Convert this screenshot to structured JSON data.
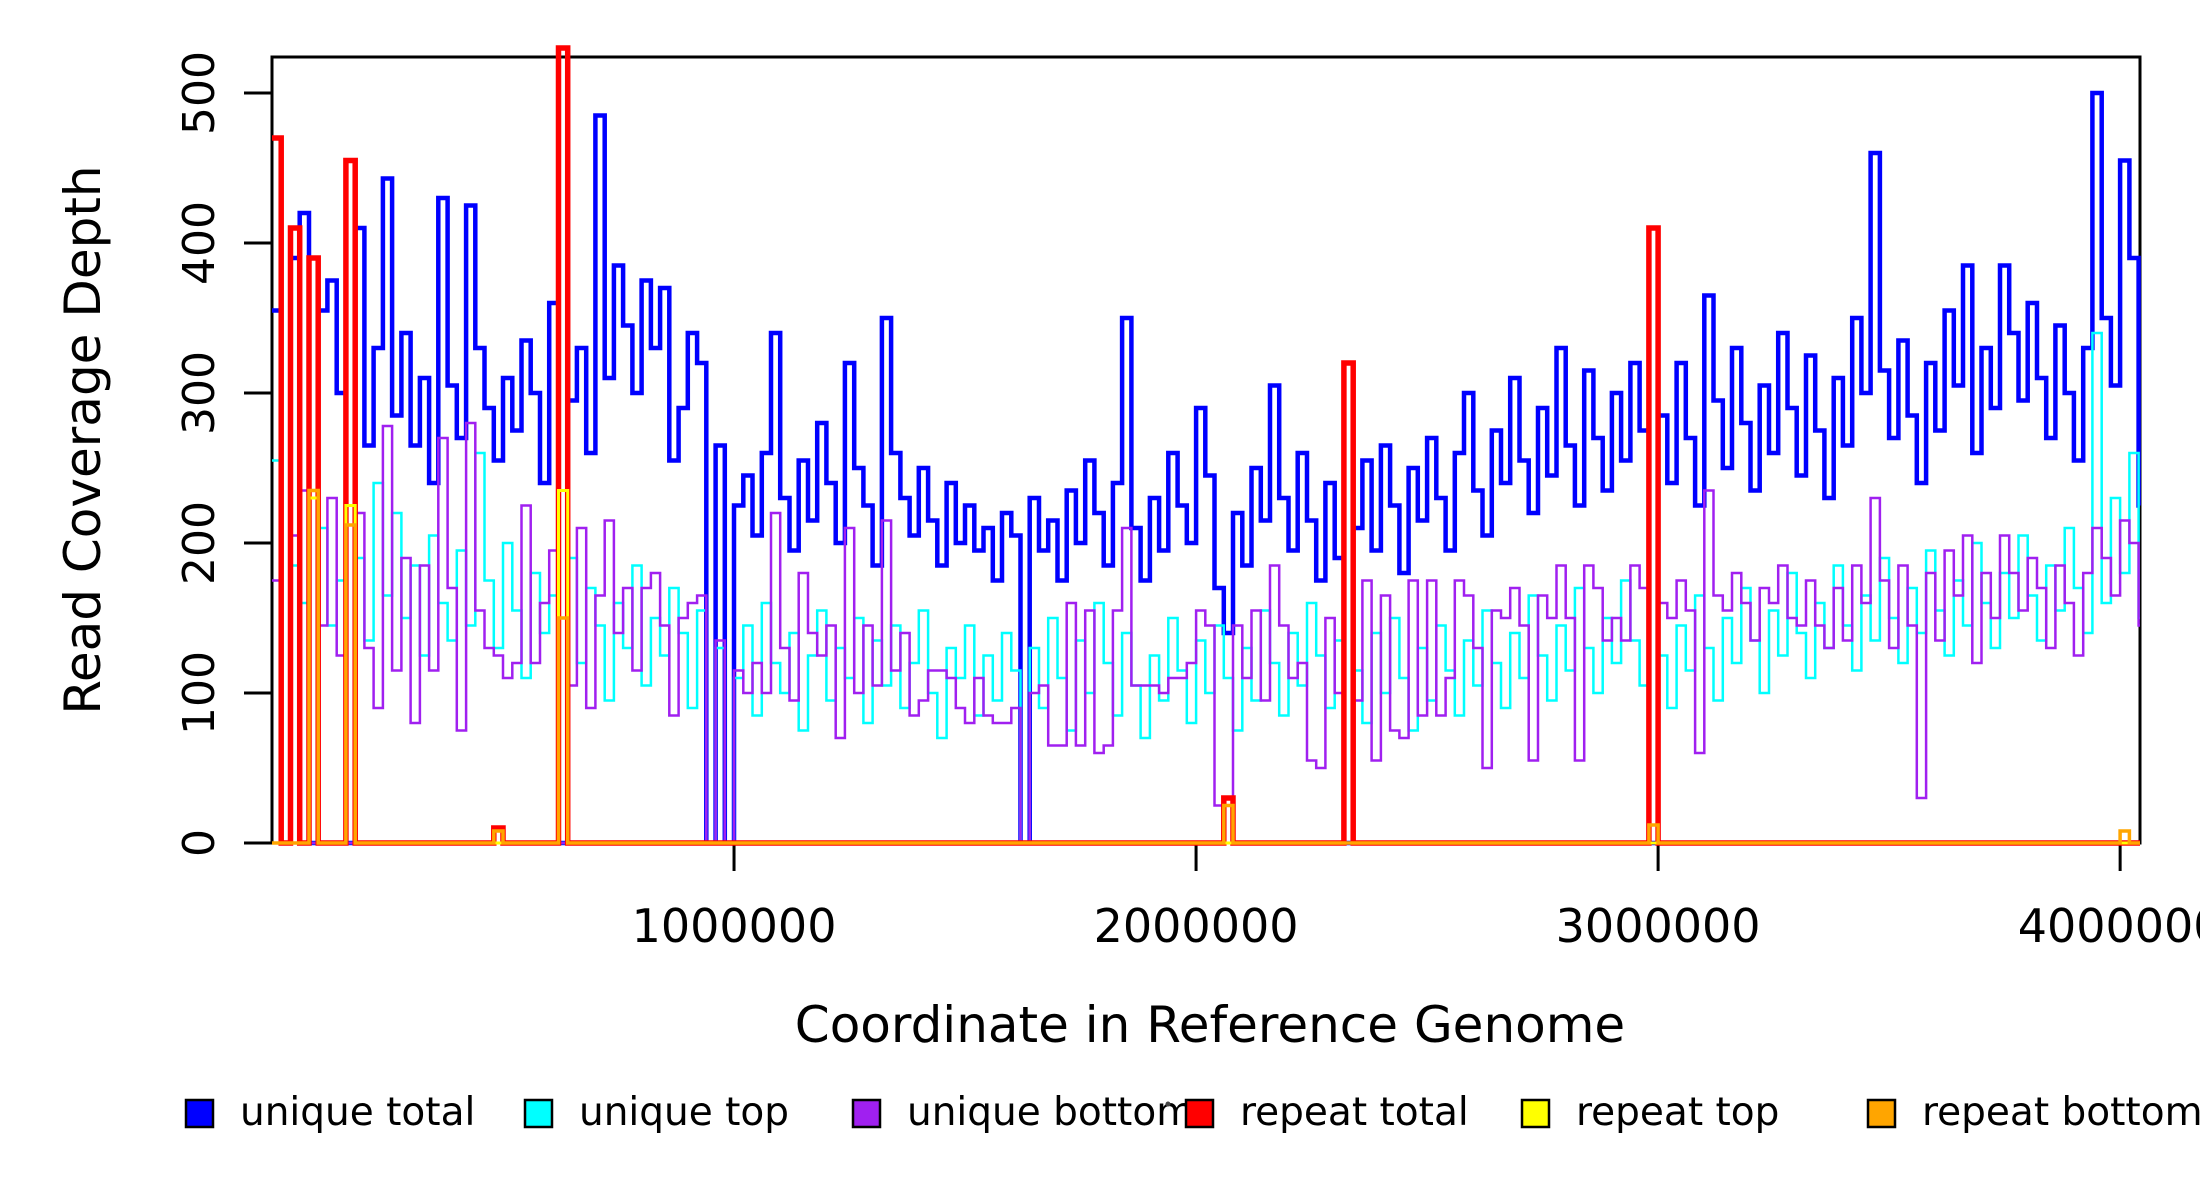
{
  "axes": {
    "y": {
      "label": "Read Coverage Depth",
      "ticks": [
        0,
        100,
        200,
        300,
        400,
        500
      ],
      "tick_labels": [
        "0",
        "100",
        "200",
        "300",
        "400",
        "500"
      ],
      "range": [
        0,
        524
      ]
    },
    "x": {
      "label": "Coordinate in Reference Genome",
      "ticks": [
        1000000,
        2000000,
        3000000,
        4000000
      ],
      "tick_labels": [
        "1000000",
        "2000000",
        "3000000",
        "4000000"
      ],
      "range": [
        0,
        4043000
      ]
    }
  },
  "legend": {
    "items": [
      {
        "label": "unique total",
        "color": "#0000FF"
      },
      {
        "label": "unique top",
        "color": "#00FFFF"
      },
      {
        "label": "unique bottom",
        "color": "#A020F0"
      },
      {
        "label": "repeat total",
        "color": "#FF0000"
      },
      {
        "label": "repeat top",
        "color": "#FFFF00"
      },
      {
        "label": "repeat bottom",
        "color": "#FFA500"
      }
    ]
  },
  "chart_data": {
    "type": "line",
    "step": true,
    "title": "",
    "xlabel": "Coordinate in Reference Genome",
    "ylabel": "Read Coverage Depth",
    "xlim": [
      0,
      4043000
    ],
    "ylim": [
      0,
      524
    ],
    "grid": false,
    "legend_position": "bottom",
    "x_start": 0,
    "x_step": 20000,
    "n_points": 203,
    "series": [
      {
        "name": "unique total",
        "color": "#0000FF",
        "stroke_width": 4.5,
        "values": [
          355,
          0,
          390,
          420,
          0,
          355,
          375,
          300,
          0,
          410,
          265,
          330,
          443,
          285,
          340,
          265,
          310,
          240,
          430,
          305,
          270,
          425,
          330,
          290,
          255,
          310,
          275,
          335,
          300,
          240,
          360,
          0,
          295,
          330,
          260,
          485,
          310,
          385,
          345,
          300,
          375,
          330,
          370,
          255,
          290,
          340,
          320,
          0,
          265,
          0,
          225,
          245,
          205,
          260,
          340,
          230,
          195,
          255,
          215,
          280,
          240,
          200,
          320,
          250,
          225,
          185,
          350,
          260,
          230,
          205,
          250,
          215,
          185,
          240,
          200,
          225,
          195,
          210,
          175,
          220,
          205,
          0,
          230,
          195,
          215,
          175,
          235,
          200,
          255,
          220,
          185,
          240,
          350,
          210,
          175,
          230,
          195,
          260,
          225,
          200,
          290,
          245,
          170,
          140,
          220,
          185,
          250,
          215,
          305,
          230,
          195,
          260,
          215,
          175,
          240,
          190,
          0,
          210,
          255,
          195,
          265,
          225,
          180,
          250,
          215,
          270,
          230,
          195,
          260,
          300,
          235,
          205,
          275,
          240,
          310,
          255,
          220,
          290,
          245,
          330,
          265,
          225,
          315,
          270,
          235,
          300,
          255,
          320,
          275,
          0,
          285,
          240,
          320,
          270,
          225,
          365,
          295,
          250,
          330,
          280,
          235,
          305,
          260,
          340,
          290,
          245,
          325,
          275,
          230,
          310,
          265,
          350,
          300,
          460,
          315,
          270,
          335,
          285,
          240,
          320,
          275,
          355,
          305,
          385,
          260,
          330,
          290,
          385,
          340,
          295,
          360,
          310,
          270,
          345,
          300,
          255,
          330,
          500,
          350,
          305,
          455,
          390,
          225
        ]
      },
      {
        "name": "unique top",
        "color": "#00FFFF",
        "stroke_width": 2.5,
        "values": [
          255,
          0,
          185,
          160,
          0,
          210,
          145,
          175,
          0,
          190,
          135,
          240,
          165,
          220,
          150,
          185,
          125,
          205,
          160,
          135,
          195,
          145,
          260,
          175,
          130,
          200,
          155,
          110,
          180,
          140,
          165,
          0,
          190,
          120,
          170,
          145,
          95,
          160,
          130,
          185,
          105,
          150,
          125,
          170,
          140,
          90,
          155,
          0,
          130,
          0,
          110,
          145,
          85,
          160,
          120,
          100,
          140,
          75,
          125,
          155,
          95,
          130,
          110,
          150,
          80,
          135,
          105,
          145,
          90,
          120,
          155,
          100,
          70,
          130,
          110,
          145,
          85,
          125,
          95,
          140,
          115,
          0,
          130,
          90,
          150,
          110,
          75,
          135,
          100,
          160,
          120,
          85,
          140,
          105,
          70,
          125,
          95,
          150,
          115,
          80,
          135,
          100,
          145,
          110,
          75,
          130,
          95,
          155,
          120,
          85,
          140,
          105,
          160,
          125,
          90,
          135,
          0,
          115,
          80,
          140,
          100,
          150,
          110,
          75,
          130,
          95,
          145,
          115,
          85,
          135,
          105,
          155,
          120,
          90,
          140,
          110,
          165,
          125,
          95,
          145,
          115,
          170,
          130,
          100,
          150,
          120,
          175,
          135,
          105,
          0,
          125,
          90,
          145,
          115,
          165,
          130,
          95,
          150,
          120,
          170,
          135,
          100,
          155,
          125,
          180,
          140,
          110,
          160,
          130,
          185,
          145,
          115,
          165,
          135,
          190,
          150,
          120,
          170,
          140,
          195,
          155,
          125,
          175,
          145,
          200,
          160,
          130,
          180,
          150,
          205,
          165,
          135,
          185,
          155,
          210,
          170,
          140,
          340,
          160,
          230,
          180,
          260,
          150
        ]
      },
      {
        "name": "unique bottom",
        "color": "#A020F0",
        "stroke_width": 2.5,
        "values": [
          175,
          0,
          205,
          235,
          0,
          145,
          230,
          125,
          0,
          220,
          130,
          90,
          278,
          115,
          190,
          80,
          185,
          115,
          270,
          170,
          75,
          280,
          155,
          130,
          125,
          110,
          120,
          225,
          120,
          160,
          195,
          0,
          105,
          210,
          90,
          165,
          215,
          140,
          170,
          115,
          170,
          180,
          145,
          85,
          150,
          160,
          165,
          0,
          135,
          0,
          115,
          100,
          120,
          100,
          220,
          130,
          95,
          180,
          140,
          125,
          145,
          70,
          210,
          100,
          145,
          105,
          215,
          115,
          140,
          85,
          95,
          115,
          115,
          110,
          90,
          80,
          110,
          85,
          80,
          80,
          90,
          0,
          100,
          105,
          65,
          65,
          160,
          65,
          155,
          60,
          65,
          155,
          210,
          105,
          105,
          105,
          100,
          110,
          110,
          120,
          155,
          145,
          25,
          30,
          145,
          110,
          155,
          95,
          185,
          145,
          110,
          120,
          55,
          50,
          150,
          100,
          0,
          95,
          175,
          55,
          165,
          75,
          70,
          175,
          85,
          175,
          85,
          110,
          175,
          165,
          130,
          50,
          155,
          150,
          170,
          145,
          55,
          165,
          150,
          185,
          150,
          55,
          185,
          170,
          135,
          150,
          135,
          185,
          170,
          0,
          160,
          150,
          175,
          155,
          60,
          235,
          165,
          155,
          180,
          160,
          135,
          170,
          160,
          185,
          150,
          145,
          175,
          145,
          130,
          170,
          135,
          185,
          160,
          230,
          175,
          130,
          185,
          145,
          30,
          180,
          135,
          195,
          165,
          205,
          120,
          180,
          150,
          205,
          180,
          155,
          190,
          170,
          130,
          185,
          160,
          125,
          180,
          210,
          190,
          165,
          215,
          200,
          145
        ]
      },
      {
        "name": "repeat total",
        "color": "#FF0000",
        "stroke_width": 5.5,
        "baseline": 0,
        "spikes": [
          [
            0,
            470
          ],
          [
            2,
            410
          ],
          [
            4,
            390
          ],
          [
            8,
            455
          ],
          [
            24,
            10
          ],
          [
            31,
            530
          ],
          [
            103,
            30
          ],
          [
            116,
            320
          ],
          [
            149,
            410
          ]
        ]
      },
      {
        "name": "repeat top",
        "color": "#FFFF00",
        "stroke_width": 3,
        "baseline": 0,
        "spikes": [
          [
            4,
            230
          ],
          [
            8,
            225
          ],
          [
            31,
            235
          ]
        ]
      },
      {
        "name": "repeat bottom",
        "color": "#FFA500",
        "stroke_width": 3.5,
        "baseline": 0,
        "spikes": [
          [
            4,
            235
          ],
          [
            8,
            212
          ],
          [
            24,
            8
          ],
          [
            31,
            150
          ],
          [
            103,
            25
          ],
          [
            149,
            12
          ],
          [
            200,
            8
          ]
        ]
      }
    ]
  }
}
